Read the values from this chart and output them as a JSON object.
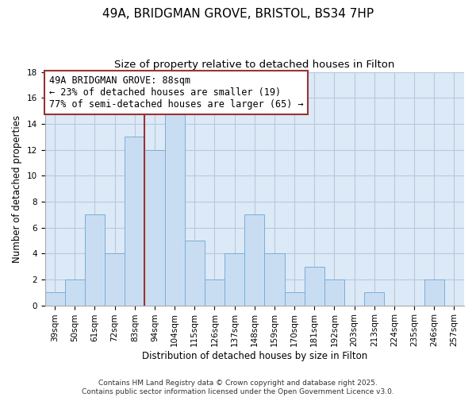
{
  "title": "49A, BRIDGMAN GROVE, BRISTOL, BS34 7HP",
  "subtitle": "Size of property relative to detached houses in Filton",
  "categories": [
    "39sqm",
    "50sqm",
    "61sqm",
    "72sqm",
    "83sqm",
    "94sqm",
    "104sqm",
    "115sqm",
    "126sqm",
    "137sqm",
    "148sqm",
    "159sqm",
    "170sqm",
    "181sqm",
    "192sqm",
    "203sqm",
    "213sqm",
    "224sqm",
    "235sqm",
    "246sqm",
    "257sqm"
  ],
  "values": [
    1,
    2,
    7,
    4,
    13,
    12,
    15,
    5,
    2,
    4,
    7,
    4,
    1,
    3,
    2,
    0,
    1,
    0,
    0,
    2,
    0
  ],
  "bar_color": "#c9ddf2",
  "bar_edge_color": "#7aaed6",
  "background_color": "#ffffff",
  "plot_bg_color": "#dce9f7",
  "grid_color": "#b8c8dc",
  "ylabel": "Number of detached properties",
  "xlabel": "Distribution of detached houses by size in Filton",
  "ylim": [
    0,
    18
  ],
  "yticks": [
    0,
    2,
    4,
    6,
    8,
    10,
    12,
    14,
    16,
    18
  ],
  "annotation_box_text": "49A BRIDGMAN GROVE: 88sqm\n← 23% of detached houses are smaller (19)\n77% of semi-detached houses are larger (65) →",
  "vline_index": 4,
  "vline_color": "#993333",
  "annotation_box_color": "#ffffff",
  "annotation_box_edge_color": "#993333",
  "footnote": "Contains HM Land Registry data © Crown copyright and database right 2025.\nContains public sector information licensed under the Open Government Licence v3.0.",
  "title_fontsize": 11,
  "subtitle_fontsize": 9.5,
  "label_fontsize": 8.5,
  "tick_fontsize": 7.5,
  "annotation_fontsize": 8.5,
  "footnote_fontsize": 6.5
}
